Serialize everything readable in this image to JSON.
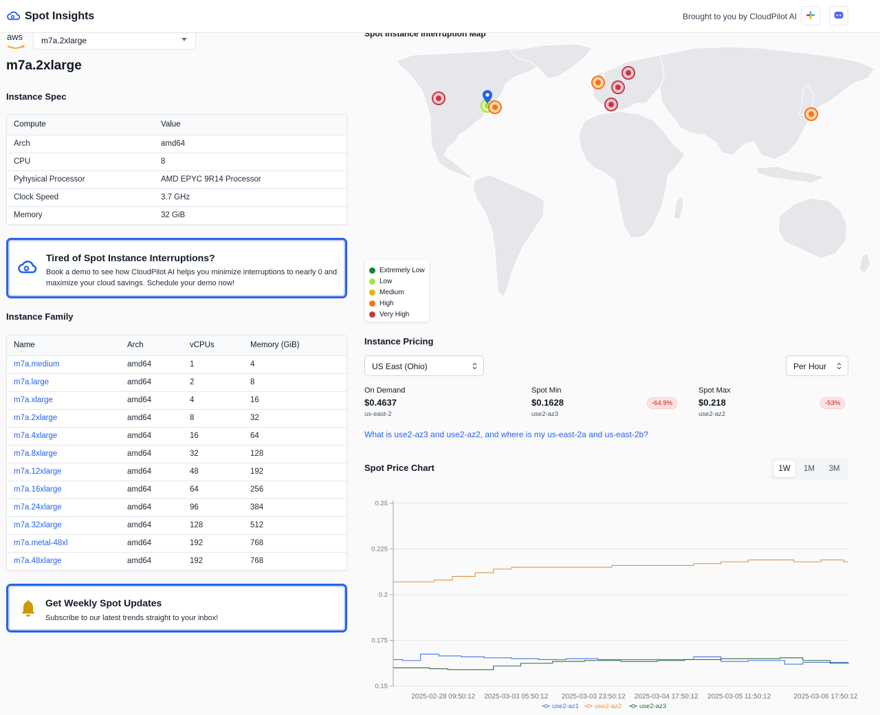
{
  "header": {
    "brand": "Spot Insights",
    "brought_by": "Brought to you by CloudPilot AI"
  },
  "provider": "aws",
  "instance_select": {
    "value": "m7a.2xlarge"
  },
  "page_title": "m7a.2xlarge",
  "spec": {
    "title": "Instance Spec",
    "columns": [
      "Compute",
      "Value"
    ],
    "rows": [
      [
        "Arch",
        "amd64"
      ],
      [
        "CPU",
        "8"
      ],
      [
        "Pyhysical Processor",
        "AMD EPYC 9R14 Processor"
      ],
      [
        "Clock Speed",
        "3.7 GHz"
      ],
      [
        "Memory",
        "32 GiB"
      ]
    ]
  },
  "promo_demo": {
    "title": "Tired of Spot Instance Interruptions?",
    "text": "Book a demo to see how CloudPilot AI helps you minimize interruptions to nearly 0 and maximize your cloud savings. Schedule your demo now!"
  },
  "family": {
    "title": "Instance Family",
    "columns": [
      "Name",
      "Arch",
      "vCPUs",
      "Memory (GiB)"
    ],
    "rows": [
      [
        "m7a.medium",
        "amd64",
        "1",
        "4"
      ],
      [
        "m7a.large",
        "amd64",
        "2",
        "8"
      ],
      [
        "m7a.xlarge",
        "amd64",
        "4",
        "16"
      ],
      [
        "m7a.2xlarge",
        "amd64",
        "8",
        "32"
      ],
      [
        "m7a.4xlarge",
        "amd64",
        "16",
        "64"
      ],
      [
        "m7a.8xlarge",
        "amd64",
        "32",
        "128"
      ],
      [
        "m7a.12xlarge",
        "amd64",
        "48",
        "192"
      ],
      [
        "m7a.16xlarge",
        "amd64",
        "64",
        "256"
      ],
      [
        "m7a.24xlarge",
        "amd64",
        "96",
        "384"
      ],
      [
        "m7a.32xlarge",
        "amd64",
        "128",
        "512"
      ],
      [
        "m7a.metal-48xl",
        "amd64",
        "192",
        "768"
      ],
      [
        "m7a.48xlarge",
        "amd64",
        "192",
        "768"
      ]
    ]
  },
  "promo_updates": {
    "title": "Get Weekly Spot Updates",
    "text": "Subscribe to our latest trends straight to your inbox!"
  },
  "map": {
    "title": "Spot Instance Interruption Map",
    "legend": [
      {
        "label": "Extremely Low",
        "color": "#15803d"
      },
      {
        "label": "Low",
        "color": "#a3e635"
      },
      {
        "label": "Medium",
        "color": "#eab308"
      },
      {
        "label": "High",
        "color": "#f97316"
      },
      {
        "label": "Very High",
        "color": "#c0394b"
      }
    ]
  },
  "pricing": {
    "title": "Instance Pricing",
    "region": "US East (Ohio)",
    "unit": "Per Hour",
    "on_demand": {
      "label": "On Demand",
      "value": "$0.4637",
      "zone": "us-east-2"
    },
    "spot_min": {
      "label": "Spot Min",
      "value": "$0.1628",
      "zone": "use2-az3",
      "badge": "-64.9%"
    },
    "spot_max": {
      "label": "Spot Max",
      "value": "$0.218",
      "zone": "use2-az2",
      "badge": "-53%"
    },
    "faq": "What is use2-az3 and use2-az2, and where is my us-east-2a and us-east-2b?"
  },
  "chart_section": {
    "title": "Spot Price Chart",
    "ranges": [
      "1W",
      "1M",
      "3M"
    ],
    "active_range": "1W"
  },
  "chart_data": {
    "type": "line",
    "title": "Spot Price Chart",
    "xlabel": "",
    "ylabel": "",
    "ylim": [
      0.15,
      0.25
    ],
    "yticks": [
      0.25,
      0.225,
      0.2,
      0.175,
      0.15
    ],
    "x": [
      "2025-02-28 09:50:12",
      "2025-03-03 05:50:12",
      "2025-03-03 23:50:12",
      "2025-03-04 17:50:12",
      "2025-03-05 11:50:12",
      "2025-03-06 17:50:12"
    ],
    "x_positions": [
      0.11,
      0.27,
      0.44,
      0.6,
      0.76,
      0.95
    ],
    "series": [
      {
        "name": "use2-az1",
        "color": "#4477dd",
        "points": [
          [
            0.0,
            0.1645
          ],
          [
            0.02,
            0.164
          ],
          [
            0.06,
            0.1675
          ],
          [
            0.1,
            0.1665
          ],
          [
            0.15,
            0.166
          ],
          [
            0.2,
            0.1655
          ],
          [
            0.26,
            0.165
          ],
          [
            0.32,
            0.1645
          ],
          [
            0.38,
            0.165
          ],
          [
            0.45,
            0.1645
          ],
          [
            0.52,
            0.1645
          ],
          [
            0.58,
            0.1645
          ],
          [
            0.66,
            0.166
          ],
          [
            0.72,
            0.1635
          ],
          [
            0.78,
            0.164
          ],
          [
            0.86,
            0.162
          ],
          [
            0.9,
            0.163
          ],
          [
            0.96,
            0.163
          ],
          [
            1.0,
            0.163
          ]
        ]
      },
      {
        "name": "use2-az2",
        "color": "#e39446",
        "points": [
          [
            0.0,
            0.207
          ],
          [
            0.05,
            0.207
          ],
          [
            0.09,
            0.208
          ],
          [
            0.13,
            0.21
          ],
          [
            0.18,
            0.212
          ],
          [
            0.22,
            0.214
          ],
          [
            0.26,
            0.215
          ],
          [
            0.33,
            0.215
          ],
          [
            0.4,
            0.215
          ],
          [
            0.48,
            0.216
          ],
          [
            0.56,
            0.216
          ],
          [
            0.62,
            0.216
          ],
          [
            0.66,
            0.217
          ],
          [
            0.72,
            0.218
          ],
          [
            0.78,
            0.219
          ],
          [
            0.82,
            0.219
          ],
          [
            0.88,
            0.218
          ],
          [
            0.94,
            0.219
          ],
          [
            0.99,
            0.218
          ],
          [
            1.0,
            0.218
          ]
        ]
      },
      {
        "name": "use2-az3",
        "color": "#2f6b3c",
        "points": [
          [
            0.0,
            0.16
          ],
          [
            0.03,
            0.16
          ],
          [
            0.08,
            0.1595
          ],
          [
            0.12,
            0.159
          ],
          [
            0.18,
            0.159
          ],
          [
            0.22,
            0.161
          ],
          [
            0.28,
            0.1625
          ],
          [
            0.35,
            0.1635
          ],
          [
            0.42,
            0.164
          ],
          [
            0.5,
            0.1635
          ],
          [
            0.58,
            0.164
          ],
          [
            0.64,
            0.1645
          ],
          [
            0.72,
            0.165
          ],
          [
            0.78,
            0.165
          ],
          [
            0.85,
            0.1655
          ],
          [
            0.9,
            0.164
          ],
          [
            0.96,
            0.1625
          ],
          [
            1.0,
            0.1628
          ]
        ]
      }
    ]
  }
}
